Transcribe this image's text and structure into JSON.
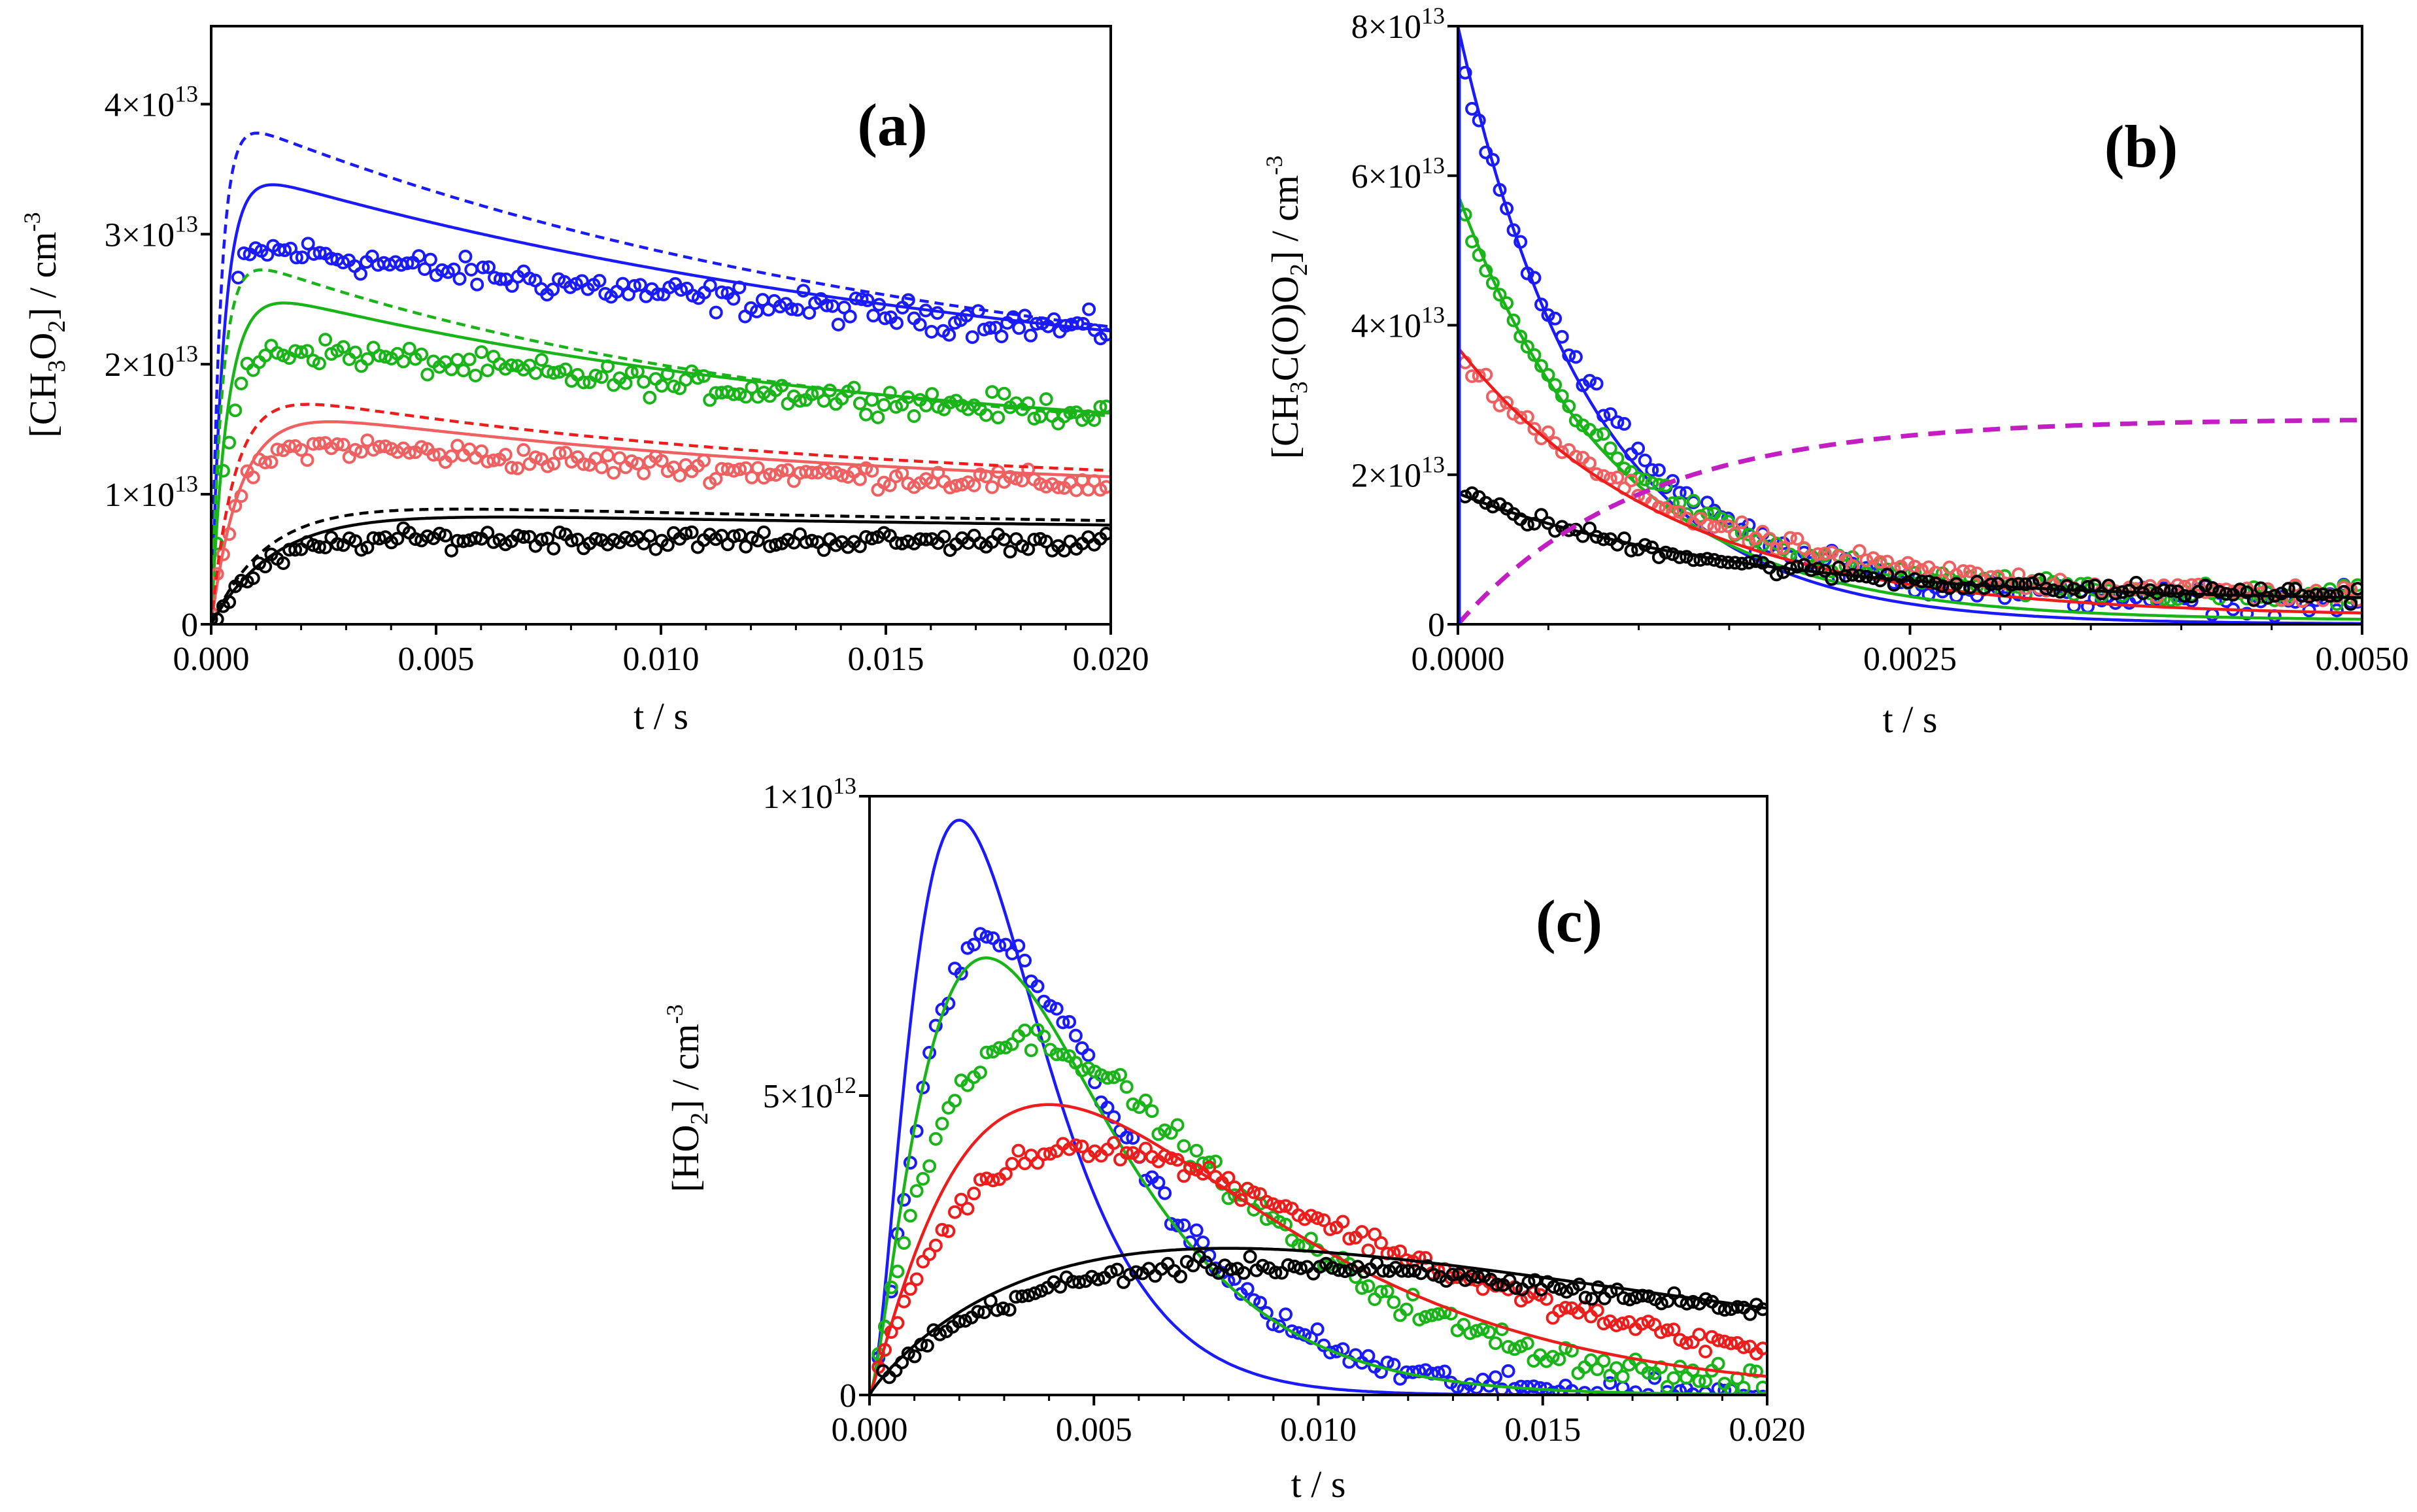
{
  "colors": {
    "blue": "#1a1aff",
    "green": "#18b418",
    "red": "#ef1c1c",
    "light_red": "#f06060",
    "black": "#000000",
    "magenta": "#c21ec2"
  },
  "chart_data": [
    {
      "type": "scatter",
      "panel": "a",
      "title": "(a)",
      "xlabel": "t / s",
      "ylabel": {
        "pre": "[CH",
        "sub1": "3",
        "mid": "O",
        "sub2": "2",
        "post": "] / cm",
        "sup": "-3"
      },
      "xlim": [
        0,
        0.02
      ],
      "ylim": [
        0,
        46000000000000.0
      ],
      "xticks": [
        "0.000",
        "0.005",
        "0.010",
        "0.015",
        "0.020"
      ],
      "yticks": [
        {
          "value": 0,
          "label": "0"
        },
        {
          "value": 10000000000000.0,
          "mantissa": "1×10",
          "exp": "13"
        },
        {
          "value": 20000000000000.0,
          "mantissa": "2×10",
          "exp": "13"
        },
        {
          "value": 30000000000000.0,
          "mantissa": "3×10",
          "exp": "13"
        },
        {
          "value": 40000000000000.0,
          "mantissa": "4×10",
          "exp": "13"
        }
      ],
      "series": [
        {
          "name": "blue data",
          "color": "blue",
          "style": "markers",
          "model": "rise-decay",
          "A": 29500000000000.0,
          "y0": 16000000000000.0,
          "krise": 4000,
          "tau": 0.028,
          "tstart": 0.0006,
          "noise": 800000000000.0,
          "n": 150
        },
        {
          "name": "blue model",
          "color": "blue",
          "style": "solid",
          "model": "rise-decay",
          "A": 35500000000000.0,
          "y0": 16200000000000.0,
          "krise": 3500,
          "tau": 0.018
        },
        {
          "name": "blue model (dashed)",
          "color": "blue",
          "style": "dashed",
          "model": "rise-decay",
          "A": 39500000000000.0,
          "y0": 16200000000000.0,
          "krise": 4800,
          "tau": 0.016
        },
        {
          "name": "green data",
          "color": "green",
          "style": "markers",
          "model": "rise-decay",
          "A": 22000000000000.0,
          "y0": 11500000000000.0,
          "krise": 2700,
          "tau": 0.025,
          "noise": 700000000000.0,
          "n": 150
        },
        {
          "name": "green model",
          "color": "green",
          "style": "solid",
          "model": "rise-decay",
          "A": 26500000000000.0,
          "y0": 13000000000000.0,
          "krise": 2700,
          "tau": 0.014
        },
        {
          "name": "green model (dashed)",
          "color": "green",
          "style": "dashed",
          "model": "rise-decay",
          "A": 29000000000000.0,
          "y0": 13000000000000.0,
          "krise": 4000,
          "tau": 0.012
        },
        {
          "name": "red data",
          "color": "light_red",
          "style": "markers",
          "model": "rise-decay",
          "A": 14500000000000.0,
          "y0": 8500000000000.0,
          "krise": 1800,
          "tau": 0.02,
          "noise": 600000000000.0,
          "n": 150
        },
        {
          "name": "red model",
          "color": "light_red",
          "style": "solid",
          "model": "rise-decay",
          "A": 17200000000000.0,
          "y0": 9500000000000.0,
          "krise": 1500,
          "tau": 0.014
        },
        {
          "name": "red model (dashed)",
          "color": "red",
          "style": "dashed",
          "model": "rise-decay",
          "A": 18500000000000.0,
          "y0": 10000000000000.0,
          "krise": 1900,
          "tau": 0.013
        },
        {
          "name": "black data",
          "color": "black",
          "style": "markers",
          "model": "rise-decay",
          "A": 6800000000000.0,
          "y0": 5500000000000.0,
          "krise": 900,
          "tau": 0.04,
          "noise": 500000000000.0,
          "n": 150
        },
        {
          "name": "black model",
          "color": "black",
          "style": "solid",
          "model": "rise-decay",
          "A": 8800000000000.0,
          "y0": 6400000000000.0,
          "krise": 700,
          "tau": 0.03
        },
        {
          "name": "black model (dashed)",
          "color": "black",
          "style": "dashed",
          "model": "rise-decay",
          "A": 9500000000000.0,
          "y0": 6500000000000.0,
          "krise": 800,
          "tau": 0.028
        }
      ]
    },
    {
      "type": "scatter",
      "panel": "b",
      "title": "(b)",
      "xlabel": "t / s",
      "ylabel": {
        "pre": "[CH",
        "sub1": "3",
        "mid": "C(O)O",
        "sub2": "2",
        "post": "] / cm",
        "sup": "-3"
      },
      "xlim": [
        0,
        0.005
      ],
      "ylim": [
        0,
        80000000000000.0
      ],
      "xticks": [
        "0.0000",
        "0.0025",
        "0.0050"
      ],
      "yticks": [
        {
          "value": 0,
          "label": "0"
        },
        {
          "value": 20000000000000.0,
          "mantissa": "2×10",
          "exp": "13"
        },
        {
          "value": 40000000000000.0,
          "mantissa": "4×10",
          "exp": "13"
        },
        {
          "value": 60000000000000.0,
          "mantissa": "6×10",
          "exp": "13"
        },
        {
          "value": 80000000000000.0,
          "mantissa": "8×10",
          "exp": "13"
        }
      ],
      "series": [
        {
          "name": "blue data",
          "color": "blue",
          "style": "markers",
          "model": "decay",
          "A": 77000000000000.0,
          "yinf": 3000000000000.0,
          "k": 1300,
          "tstart": 4e-05,
          "noise": 1200000000000.0,
          "n": 130
        },
        {
          "name": "blue model",
          "color": "blue",
          "style": "solid",
          "model": "decay",
          "A": 80000000000000.0,
          "yinf": 0,
          "k": 1350
        },
        {
          "name": "green data",
          "color": "green",
          "style": "markers",
          "model": "decay",
          "A": 56000000000000.0,
          "yinf": 3500000000000.0,
          "k": 1150,
          "tstart": 4e-05,
          "noise": 1000000000000.0,
          "n": 130
        },
        {
          "name": "green model",
          "color": "green",
          "style": "solid",
          "model": "decay",
          "A": 57500000000000.0,
          "yinf": 500000000000.0,
          "k": 1150
        },
        {
          "name": "red data",
          "color": "light_red",
          "style": "markers",
          "model": "decay",
          "A": 36000000000000.0,
          "yinf": 3500000000000.0,
          "k": 850,
          "tstart": 4e-05,
          "noise": 900000000000.0,
          "n": 130
        },
        {
          "name": "red model",
          "color": "red",
          "style": "solid",
          "model": "decay",
          "A": 37000000000000.0,
          "yinf": 1000000000000.0,
          "k": 850
        },
        {
          "name": "black data",
          "color": "black",
          "style": "markers",
          "model": "decay",
          "A": 17500000000000.0,
          "yinf": 3500000000000.0,
          "k": 700,
          "tstart": 4e-05,
          "noise": 700000000000.0,
          "n": 130
        },
        {
          "name": "black model",
          "color": "black",
          "style": "solid",
          "model": "decay",
          "A": 17500000000000.0,
          "yinf": 3000000000000.0,
          "k": 650
        },
        {
          "name": "magenta model (dashed)",
          "color": "magenta",
          "style": "dashed",
          "model": "growth",
          "A": 27500000000000.0,
          "k": 1000
        }
      ]
    },
    {
      "type": "scatter",
      "panel": "c",
      "title": "(c)",
      "xlabel": "t / s",
      "ylabel": {
        "pre": "[HO",
        "sub1": "2",
        "mid": "",
        "sub2": "",
        "post": "] / cm",
        "sup": "-3"
      },
      "xlim": [
        0,
        0.02
      ],
      "ylim": [
        0,
        10000000000000.0
      ],
      "xticks": [
        "0.000",
        "0.005",
        "0.010",
        "0.015",
        "0.020"
      ],
      "yticks": [
        {
          "value": 0,
          "label": "0"
        },
        {
          "value": 5000000000000.0,
          "mantissa": "5×10",
          "exp": "12"
        },
        {
          "value": 10000000000000.0,
          "mantissa": "1×10",
          "exp": "13"
        }
      ],
      "series": [
        {
          "name": "blue data",
          "color": "blue",
          "style": "markers",
          "model": "kinetic",
          "A": 7600000000000.0,
          "tp": 0.0027,
          "p": 1.55,
          "tstart": 0.0002,
          "noise": 150000000000.0,
          "n": 140
        },
        {
          "name": "blue model",
          "color": "blue",
          "style": "solid",
          "model": "kinetic",
          "A": 9600000000000.0,
          "tp": 0.002,
          "p": 1.8
        },
        {
          "name": "green data",
          "color": "green",
          "style": "markers",
          "model": "kinetic",
          "A": 5950000000000.0,
          "tp": 0.0035,
          "p": 1.15,
          "tstart": 0.0002,
          "noise": 150000000000.0,
          "n": 140
        },
        {
          "name": "green model",
          "color": "green",
          "style": "solid",
          "model": "kinetic",
          "A": 7300000000000.0,
          "tp": 0.0026,
          "p": 1.45
        },
        {
          "name": "red data",
          "color": "red",
          "style": "markers",
          "model": "kinetic",
          "A": 4150000000000.0,
          "tp": 0.0048,
          "p": 1.0,
          "tstart": 0.0002,
          "noise": 120000000000.0,
          "n": 140
        },
        {
          "name": "red model",
          "color": "red",
          "style": "solid",
          "model": "kinetic",
          "A": 4850000000000.0,
          "tp": 0.004,
          "p": 1.15
        },
        {
          "name": "black data",
          "color": "black",
          "style": "markers",
          "model": "kinetic",
          "A": 2150000000000.0,
          "tp": 0.0085,
          "p": 0.85,
          "tstart": 0.0003,
          "noise": 100000000000.0,
          "n": 140
        },
        {
          "name": "black model",
          "color": "black",
          "style": "solid",
          "model": "kinetic",
          "A": 2450000000000.0,
          "tp": 0.008,
          "p": 0.9
        }
      ]
    }
  ]
}
